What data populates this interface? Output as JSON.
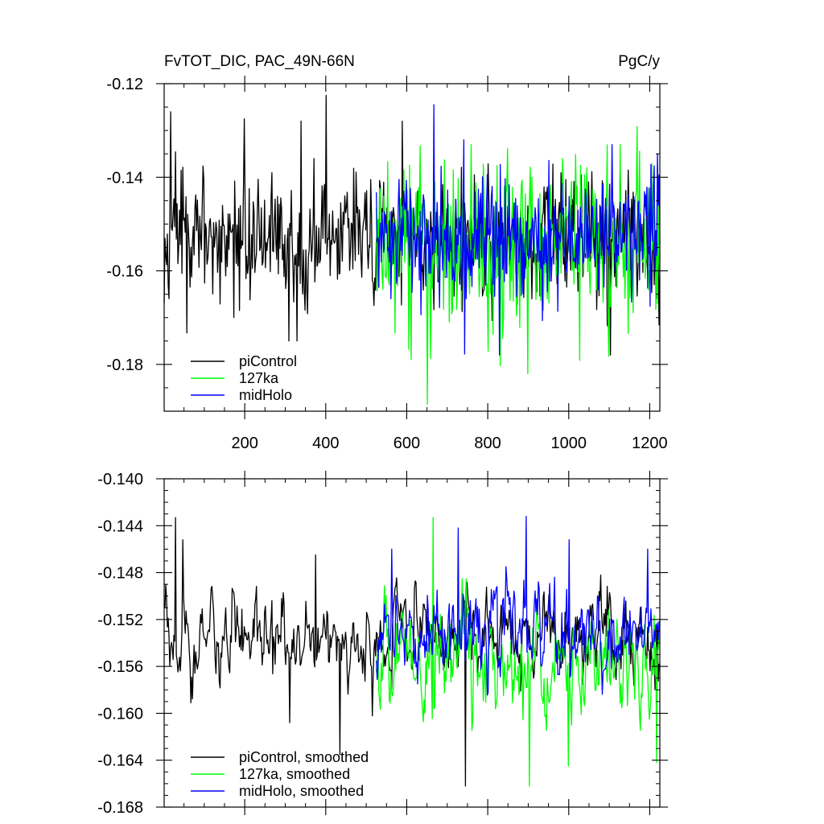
{
  "chart_data": [
    {
      "type": "line",
      "title": "FvTOT_DIC, PAC_49N-66N",
      "units": "PgC/y",
      "xlim": [
        1,
        1225
      ],
      "ylim": [
        -0.19,
        -0.12
      ],
      "x_ticks": [
        200,
        400,
        600,
        800,
        1000,
        1200
      ],
      "y_ticks": [
        -0.12,
        -0.14,
        -0.16,
        -0.18
      ],
      "y_tick_labels": [
        "-0.12",
        "-0.14",
        "-0.16",
        "-0.18"
      ],
      "x_tick_labels": [
        "200",
        "400",
        "600",
        "800",
        "1000",
        "1200"
      ],
      "grid": false,
      "legend_position": "bottom-left",
      "series": [
        {
          "name": "piControl",
          "color": "#000000",
          "x_range": [
            1,
            1225
          ],
          "mean": -0.1535,
          "spread": 0.0065,
          "highlights": [
            [
              18,
              -0.126
            ],
            [
              200,
              -0.1275
            ],
            [
              402,
              -0.1225
            ],
            [
              340,
              -0.128
            ],
            [
              310,
              -0.175
            ],
            [
              330,
              -0.175
            ],
            [
              1103,
              -0.178
            ],
            [
              590,
              -0.128
            ]
          ]
        },
        {
          "name": "127ka",
          "color": "#00ff00",
          "x_range": [
            525,
            1225
          ],
          "mean": -0.154,
          "spread": 0.0085,
          "highlights": [
            [
              652,
              -0.1885
            ],
            [
              900,
              -0.182
            ],
            [
              612,
              -0.179
            ],
            [
              760,
              -0.133
            ],
            [
              1128,
              -0.133
            ]
          ]
        },
        {
          "name": "midHolo",
          "color": "#0000ff",
          "x_range": [
            525,
            1225
          ],
          "mean": -0.1525,
          "spread": 0.0065,
          "highlights": [
            [
              668,
              -0.1245
            ],
            [
              742,
              -0.132
            ],
            [
              1108,
              -0.133
            ],
            [
              830,
              -0.178
            ]
          ]
        }
      ]
    },
    {
      "type": "line",
      "title": "",
      "xlim": [
        1,
        1225
      ],
      "ylim": [
        -0.168,
        -0.14
      ],
      "y_ticks": [
        -0.14,
        -0.144,
        -0.148,
        -0.152,
        -0.156,
        -0.16,
        -0.164,
        -0.168
      ],
      "y_tick_labels": [
        "-0.140",
        "-0.144",
        "-0.148",
        "-0.152",
        "-0.156",
        "-0.160",
        "-0.164",
        "-0.168"
      ],
      "grid": false,
      "legend_position": "bottom-left",
      "series": [
        {
          "name": "piControl, smoothed",
          "color": "#000000",
          "x_range": [
            1,
            1225
          ],
          "mean": -0.1535,
          "spread": 0.0022,
          "highlights": [
            [
              30,
              -0.1433
            ],
            [
              48,
              -0.1452
            ],
            [
              375,
              -0.1465
            ],
            [
              436,
              -0.1635
            ],
            [
              745,
              -0.1662
            ],
            [
              312,
              -0.1608
            ]
          ]
        },
        {
          "name": "127ka, smoothed",
          "color": "#00ff00",
          "x_range": [
            525,
            1225
          ],
          "mean": -0.1555,
          "spread": 0.003,
          "highlights": [
            [
              665,
              -0.1433
            ],
            [
              903,
              -0.1662
            ],
            [
              1000,
              -0.1645
            ],
            [
              1218,
              -0.1642
            ]
          ]
        },
        {
          "name": "midHolo, smoothed",
          "color": "#0000ff",
          "x_range": [
            525,
            1225
          ],
          "mean": -0.1525,
          "spread": 0.0025,
          "highlights": [
            [
              563,
              -0.146
            ],
            [
              728,
              -0.1442
            ],
            [
              895,
              -0.1432
            ],
            [
              1002,
              -0.1452
            ],
            [
              1195,
              -0.146
            ]
          ]
        }
      ]
    }
  ]
}
